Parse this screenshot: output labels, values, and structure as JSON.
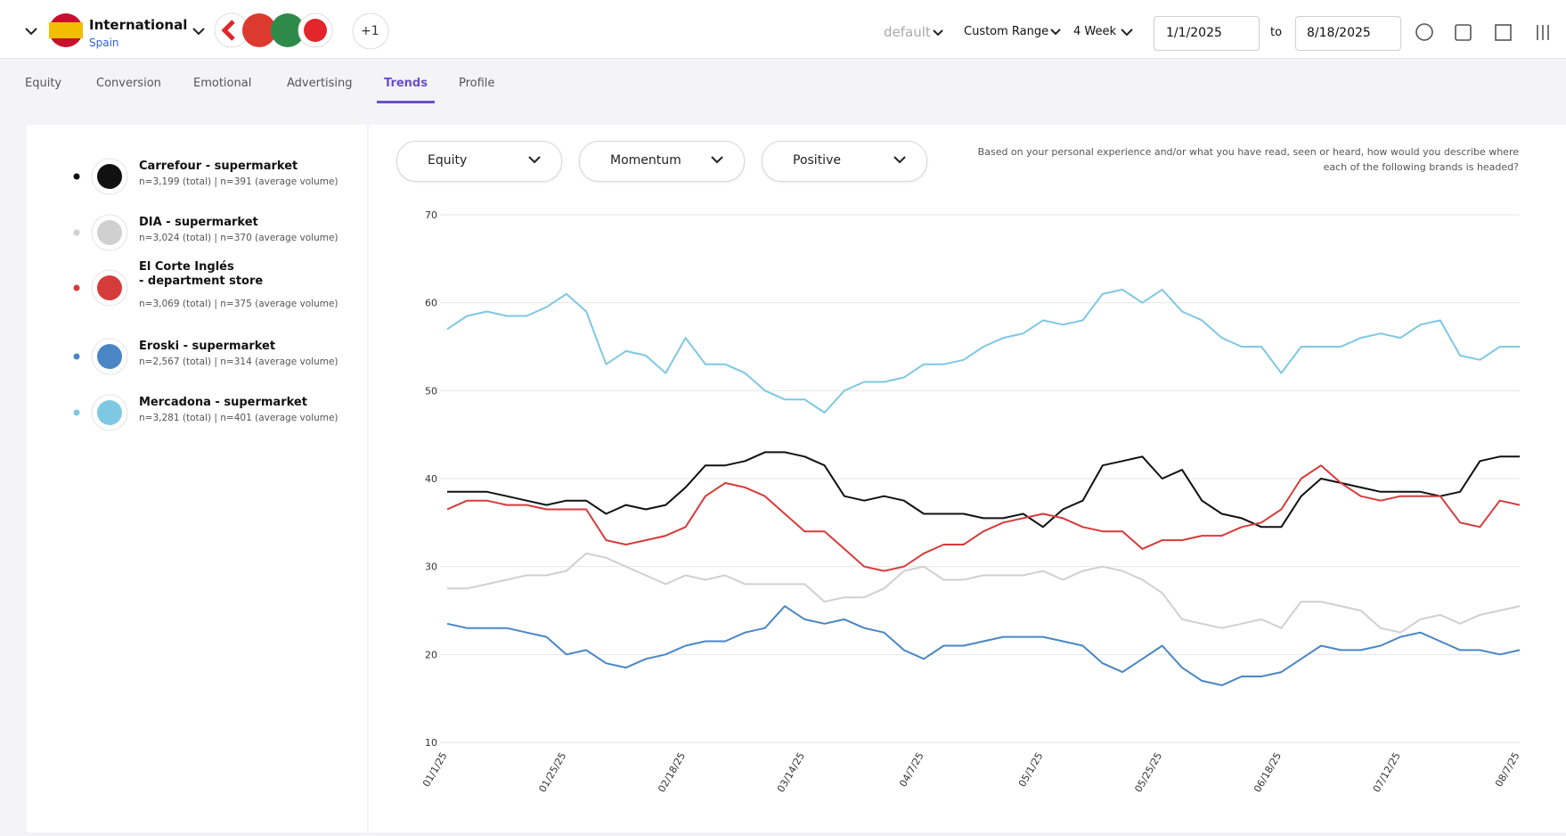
{
  "header": {
    "region": "International",
    "country": "Spain",
    "more_brands": "+1",
    "preset": "default",
    "range_type": "Custom Range",
    "window": "4 Week",
    "date_from": "1/1/2025",
    "date_separator": "to",
    "date_to": "8/18/2025"
  },
  "tabs": {
    "items": [
      "Equity",
      "Conversion",
      "Emotional",
      "Advertising",
      "Trends",
      "Profile"
    ],
    "active": 4
  },
  "filters": {
    "dropdowns": [
      "Equity",
      "Momentum",
      "Positive"
    ],
    "question": [
      "Based on your personal experience and/or what you have read, seen or heard, how would you describe where",
      "each of the following brands is headed?"
    ]
  },
  "chart_data": {
    "type": "line",
    "categories": [
      "01/1/25",
      null,
      null,
      null,
      null,
      null,
      "01/25/25",
      null,
      null,
      null,
      null,
      null,
      "02/18/25",
      null,
      null,
      null,
      null,
      null,
      "03/14/25",
      null,
      null,
      null,
      null,
      null,
      "04/7/25",
      null,
      null,
      null,
      null,
      null,
      "05/1/25",
      null,
      null,
      null,
      null,
      null,
      "05/25/25",
      null,
      null,
      null,
      null,
      null,
      "06/18/25",
      null,
      null,
      null,
      null,
      null,
      "07/12/25",
      null,
      null,
      null,
      null,
      null,
      "08/7/25"
    ],
    "ylim": [
      10,
      70
    ],
    "yticks": [
      10,
      20,
      30,
      40,
      50,
      60,
      70
    ],
    "grid": true,
    "series": [
      {
        "name": "Carrefour - supermarket",
        "sample": "n=3,199 (total) | n=391 (average volume)",
        "color": "#111111",
        "values": [
          38.5,
          38.5,
          38.5,
          38,
          37.5,
          37,
          37.5,
          37.5,
          36,
          37,
          36.5,
          37,
          39,
          41.5,
          41.5,
          42,
          43,
          43,
          42.5,
          41.5,
          38,
          37.5,
          38,
          37.5,
          36,
          36,
          36,
          35.5,
          35.5,
          36,
          34.5,
          36.5,
          37.5,
          41.5,
          42,
          42.5,
          40,
          41,
          37.5,
          36,
          35.5,
          34.5,
          34.5,
          38,
          40,
          39.5,
          39,
          38.5,
          38.5,
          38.5,
          38,
          38.5,
          42,
          42.5,
          42.5
        ]
      },
      {
        "name": "DIA - supermarket",
        "sample": "n=3,024 (total) | n=370 (average volume)",
        "color": "#d0d0d0",
        "values": [
          27.5,
          27.5,
          28,
          28.5,
          29,
          29,
          29.5,
          31.5,
          31,
          30,
          29,
          28,
          29,
          28.5,
          29,
          28,
          28,
          28,
          28,
          26,
          26.5,
          26.5,
          27.5,
          29.5,
          30,
          28.5,
          28.5,
          29,
          29,
          29,
          29.5,
          28.5,
          29.5,
          30,
          29.5,
          28.5,
          27,
          24,
          23.5,
          23,
          23.5,
          24,
          23,
          26,
          26,
          25.5,
          25,
          23,
          22.5,
          24,
          24.5,
          23.5,
          24.5,
          25,
          25.5
        ]
      },
      {
        "name": "El Corte Inglés - department store",
        "sample": "n=3,069 (total) | n=375 (average volume)",
        "color": "#d63b3b",
        "values": [
          36.5,
          37.5,
          37.5,
          37,
          37,
          36.5,
          36.5,
          36.5,
          33,
          32.5,
          33,
          33.5,
          34.5,
          38,
          39.5,
          39,
          38,
          36,
          34,
          34,
          32,
          30,
          29.5,
          30,
          31.5,
          32.5,
          32.5,
          34,
          35,
          35.5,
          36,
          35.5,
          34.5,
          34,
          34,
          32,
          33,
          33,
          33.5,
          33.5,
          34.5,
          35,
          36.5,
          40,
          41.5,
          39.5,
          38,
          37.5,
          38,
          38,
          38,
          35,
          34.5,
          37.5,
          37
        ]
      },
      {
        "name": "Eroski - supermarket",
        "sample": "n=2,567 (total) | n=314 (average volume)",
        "color": "#4a86c5",
        "values": [
          23.5,
          23,
          23,
          23,
          22.5,
          22,
          20,
          20.5,
          19,
          18.5,
          19.5,
          20,
          21,
          21.5,
          21.5,
          22.5,
          23,
          25.5,
          24,
          23.5,
          24,
          23,
          22.5,
          20.5,
          19.5,
          21,
          21,
          21.5,
          22,
          22,
          22,
          21.5,
          21,
          19,
          18,
          19.5,
          21,
          18.5,
          17,
          16.5,
          17.5,
          17.5,
          18,
          19.5,
          21,
          20.5,
          20.5,
          21,
          22,
          22.5,
          21.5,
          20.5,
          20.5,
          20,
          20.5
        ]
      },
      {
        "name": "Mercadona - supermarket",
        "sample": "n=3,281 (total) | n=401 (average volume)",
        "color": "#7ec8e3",
        "values": [
          57,
          58.5,
          59,
          58.5,
          58.5,
          59.5,
          61,
          59,
          53,
          54.5,
          54,
          52,
          56,
          53,
          53,
          52,
          50,
          49,
          49,
          47.5,
          50,
          51,
          51,
          51.5,
          53,
          53,
          53.5,
          55,
          56,
          56.5,
          58,
          57.5,
          58,
          61,
          61.5,
          60,
          61.5,
          59,
          58,
          56,
          55,
          55,
          52,
          55,
          55,
          55,
          56,
          56.5,
          56,
          57.5,
          58,
          54,
          53.5,
          55,
          55
        ]
      }
    ]
  }
}
